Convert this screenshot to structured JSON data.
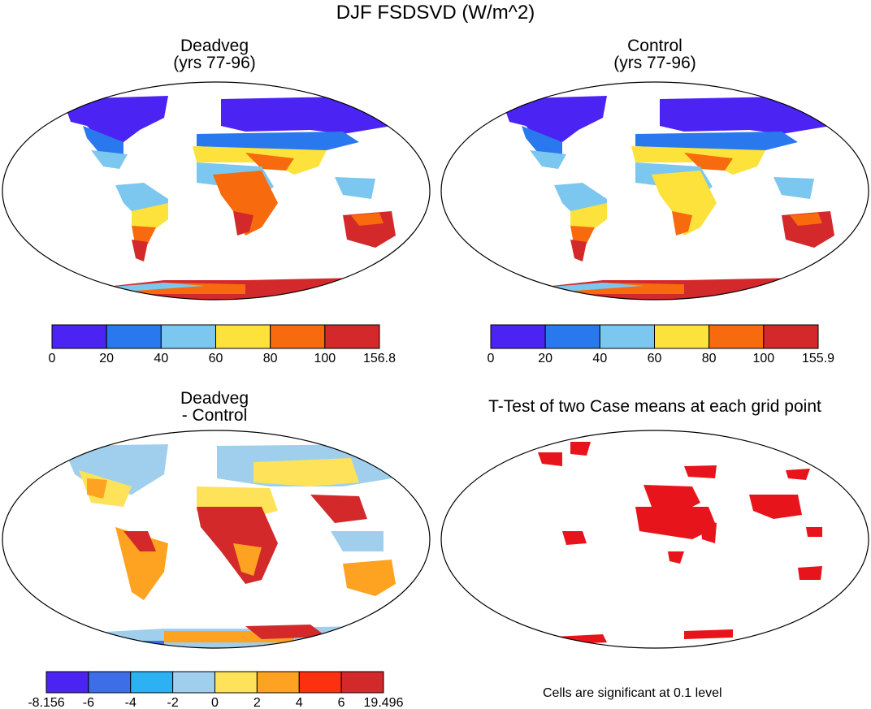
{
  "main_title": "DJF FSDSVD (W/m^2)",
  "panels": [
    {
      "title_line1": "Deadveg",
      "title_line2": "(yrs 77-96)",
      "colorbar": {
        "colors": [
          "#4b23f2",
          "#2a78ee",
          "#7cc7ef",
          "#fde23b",
          "#f76a0d",
          "#d3292b"
        ],
        "labels": [
          "0",
          "20",
          "40",
          "60",
          "80",
          "100",
          "156.8"
        ]
      }
    },
    {
      "title_line1": "Control",
      "title_line2": "(yrs 77-96)",
      "colorbar": {
        "colors": [
          "#4b23f2",
          "#2a78ee",
          "#7cc7ef",
          "#fde23b",
          "#f76a0d",
          "#d3292b"
        ],
        "labels": [
          "0",
          "20",
          "40",
          "60",
          "80",
          "100",
          "155.9"
        ]
      }
    },
    {
      "title_line1": "Deadveg",
      "title_line2": "- Control",
      "colorbar": {
        "colors": [
          "#4b23f2",
          "#3d6ee8",
          "#2cb1f3",
          "#9fcfec",
          "#fde25a",
          "#fea321",
          "#fd3010",
          "#d3292b"
        ],
        "labels": [
          "-8.156",
          "-6",
          "-4",
          "-2",
          "0",
          "2",
          "4",
          "6",
          "19.496"
        ]
      }
    },
    {
      "title_line1": "T-Test of two Case means at each grid point",
      "title_line2": ""
    }
  ],
  "significance_note": "Cells are significant at 0.1 level",
  "colors": {
    "land_outline": "#000000",
    "significant": "#e8141b"
  }
}
